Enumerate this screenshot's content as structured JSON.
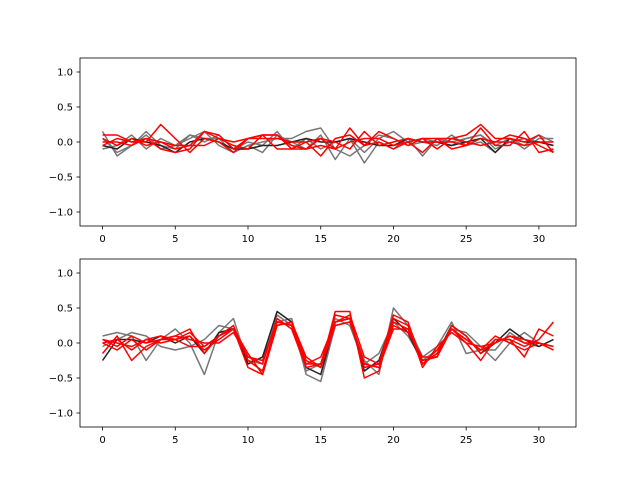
{
  "chart_data": [
    {
      "type": "line",
      "title": "",
      "xlabel": "",
      "ylabel": "",
      "xlim": [
        -1.55,
        32.55
      ],
      "ylim": [
        -1.2,
        1.2
      ],
      "xticks": [
        0,
        5,
        10,
        15,
        20,
        25,
        30
      ],
      "yticks": [
        -1.0,
        -0.5,
        0.0,
        0.5,
        1.0
      ],
      "xtick_labels": [
        "0",
        "5",
        "10",
        "15",
        "20",
        "25",
        "30"
      ],
      "ytick_labels": [
        "−1.0",
        "−0.5",
        "0.0",
        "0.5",
        "1.0"
      ],
      "grid": false,
      "legend": "none",
      "x": [
        0,
        1,
        2,
        3,
        4,
        5,
        6,
        7,
        8,
        9,
        10,
        11,
        12,
        13,
        14,
        15,
        16,
        17,
        18,
        19,
        20,
        21,
        22,
        23,
        24,
        25,
        26,
        27,
        28,
        29,
        30,
        31
      ],
      "series": [
        {
          "color": "#777777",
          "values": [
            0.15,
            -0.2,
            -0.05,
            0.15,
            -0.05,
            -0.1,
            0.1,
            0.05,
            0.05,
            -0.15,
            -0.05,
            0.0,
            0.05,
            0.05,
            0.15,
            0.2,
            -0.1,
            -0.2,
            -0.05,
            0.1,
            0.05,
            -0.05,
            0.0,
            -0.05,
            0.1,
            -0.05,
            0.0,
            -0.15,
            0.05,
            -0.05,
            0.1,
            0.0
          ]
        },
        {
          "color": "#777777",
          "values": [
            -0.1,
            -0.05,
            0.1,
            -0.1,
            0.05,
            -0.05,
            0.05,
            0.15,
            -0.05,
            -0.15,
            -0.05,
            -0.15,
            0.1,
            0.0,
            -0.1,
            0.1,
            -0.25,
            0.05,
            -0.3,
            0.0,
            -0.1,
            0.05,
            -0.2,
            0.05,
            0.0,
            0.05,
            0.1,
            -0.05,
            0.05,
            -0.1,
            0.05,
            0.05
          ]
        },
        {
          "color": "#777777",
          "values": [
            0.05,
            -0.15,
            -0.05,
            0.1,
            -0.1,
            -0.05,
            0.1,
            0.0,
            0.1,
            -0.1,
            0.0,
            -0.05,
            0.15,
            -0.1,
            0.05,
            -0.1,
            0.0,
            0.05,
            -0.15,
            0.05,
            0.15,
            0.0,
            0.05,
            0.0,
            -0.05,
            0.05,
            0.1,
            -0.1,
            0.0,
            0.05,
            0.0,
            -0.05
          ]
        },
        {
          "color": "#222222",
          "values": [
            -0.05,
            -0.1,
            0.05,
            0.0,
            -0.05,
            -0.15,
            0.0,
            0.05,
            0.0,
            -0.1,
            -0.1,
            -0.05,
            -0.05,
            0.0,
            0.05,
            0.0,
            0.0,
            0.05,
            0.0,
            -0.05,
            -0.05,
            0.05,
            0.0,
            0.0,
            -0.05,
            0.0,
            0.05,
            -0.15,
            0.05,
            0.0,
            0.0,
            -0.05
          ]
        },
        {
          "color": "#ff0000",
          "values": [
            0.1,
            0.1,
            0.0,
            0.0,
            0.25,
            0.05,
            -0.15,
            0.05,
            0.0,
            -0.15,
            0.05,
            0.1,
            -0.1,
            -0.1,
            -0.1,
            -0.05,
            -0.1,
            0.2,
            -0.05,
            0.15,
            0.05,
            -0.05,
            0.05,
            -0.1,
            0.05,
            0.1,
            0.25,
            0.05,
            0.05,
            0.0,
            0.1,
            -0.15
          ]
        },
        {
          "color": "#ff0000",
          "values": [
            0.05,
            -0.05,
            0.05,
            -0.05,
            0.0,
            -0.1,
            -0.05,
            0.15,
            0.05,
            -0.05,
            -0.1,
            0.1,
            0.1,
            -0.05,
            -0.1,
            0.05,
            0.0,
            -0.1,
            0.15,
            -0.05,
            0.0,
            0.05,
            0.0,
            0.0,
            0.0,
            -0.05,
            0.2,
            -0.05,
            -0.05,
            0.15,
            -0.15,
            -0.1
          ]
        },
        {
          "color": "#ff0000",
          "values": [
            -0.05,
            0.05,
            0.0,
            0.05,
            -0.1,
            -0.15,
            -0.1,
            0.15,
            0.1,
            -0.1,
            0.05,
            0.1,
            0.1,
            -0.1,
            0.0,
            -0.2,
            0.05,
            0.1,
            -0.05,
            0.0,
            -0.1,
            0.0,
            -0.15,
            0.05,
            -0.1,
            -0.05,
            0.05,
            0.0,
            0.1,
            0.05,
            -0.05,
            -0.15
          ]
        },
        {
          "color": "#ff0000",
          "values": [
            0.0,
            0.0,
            -0.05,
            0.05,
            0.0,
            -0.05,
            -0.05,
            -0.05,
            0.05,
            0.0,
            0.05,
            0.05,
            0.05,
            0.0,
            0.0,
            0.05,
            -0.1,
            0.0,
            0.05,
            0.05,
            -0.05,
            0.0,
            0.05,
            0.05,
            0.05,
            0.0,
            -0.05,
            0.0,
            0.0,
            -0.05,
            0.0,
            0.0
          ]
        }
      ]
    },
    {
      "type": "line",
      "title": "",
      "xlabel": "",
      "ylabel": "",
      "xlim": [
        -1.55,
        32.55
      ],
      "ylim": [
        -1.2,
        1.2
      ],
      "xticks": [
        0,
        5,
        10,
        15,
        20,
        25,
        30
      ],
      "yticks": [
        -1.0,
        -0.5,
        0.0,
        0.5,
        1.0
      ],
      "xtick_labels": [
        "0",
        "5",
        "10",
        "15",
        "20",
        "25",
        "30"
      ],
      "ytick_labels": [
        "−1.0",
        "−0.5",
        "0.0",
        "0.5",
        "1.0"
      ],
      "grid": false,
      "legend": "none",
      "x": [
        0,
        1,
        2,
        3,
        4,
        5,
        6,
        7,
        8,
        9,
        10,
        11,
        12,
        13,
        14,
        15,
        16,
        17,
        18,
        19,
        20,
        21,
        22,
        23,
        24,
        25,
        26,
        27,
        28,
        29,
        30,
        31
      ],
      "series": [
        {
          "color": "#777777",
          "values": [
            0.1,
            0.15,
            0.1,
            -0.25,
            0.05,
            0.2,
            0.0,
            -0.45,
            0.15,
            0.35,
            -0.3,
            -0.2,
            0.3,
            0.35,
            -0.45,
            -0.55,
            0.25,
            0.3,
            -0.25,
            -0.45,
            0.5,
            0.25,
            -0.2,
            -0.05,
            0.3,
            -0.15,
            -0.1,
            -0.1,
            0.15,
            0.0,
            -0.05,
            0.05
          ]
        },
        {
          "color": "#777777",
          "values": [
            -0.05,
            0.05,
            0.15,
            0.1,
            -0.05,
            -0.1,
            -0.05,
            0.05,
            0.25,
            0.2,
            -0.25,
            -0.3,
            0.4,
            0.25,
            -0.4,
            -0.3,
            0.35,
            0.25,
            -0.3,
            -0.15,
            0.3,
            0.1,
            -0.25,
            -0.1,
            0.2,
            0.15,
            -0.05,
            -0.25,
            0.0,
            0.15,
            0.0,
            -0.05
          ]
        },
        {
          "color": "#222222",
          "values": [
            -0.25,
            0.05,
            0.05,
            0.0,
            0.1,
            0.0,
            0.1,
            -0.15,
            0.15,
            0.2,
            -0.3,
            -0.2,
            0.45,
            0.3,
            -0.35,
            -0.45,
            0.3,
            0.35,
            -0.4,
            -0.25,
            0.35,
            0.15,
            -0.3,
            -0.15,
            0.25,
            0.1,
            -0.15,
            0.0,
            0.2,
            0.05,
            -0.05,
            0.05
          ]
        },
        {
          "color": "#ff0000",
          "values": [
            0.05,
            -0.05,
            0.1,
            0.0,
            0.05,
            0.1,
            0.2,
            -0.15,
            0.1,
            0.2,
            -0.35,
            -0.45,
            0.25,
            0.3,
            -0.2,
            -0.35,
            0.45,
            0.45,
            -0.5,
            -0.4,
            0.35,
            0.25,
            -0.35,
            -0.05,
            0.15,
            0.0,
            -0.25,
            0.05,
            0.05,
            -0.2,
            0.2,
            0.1
          ]
        },
        {
          "color": "#ff0000",
          "values": [
            -0.15,
            0.1,
            -0.25,
            -0.05,
            0.05,
            0.05,
            0.15,
            -0.05,
            0.1,
            0.25,
            -0.25,
            -0.4,
            0.3,
            0.25,
            -0.3,
            -0.2,
            0.3,
            0.4,
            -0.2,
            -0.3,
            0.4,
            0.3,
            -0.3,
            -0.1,
            0.2,
            0.05,
            -0.1,
            0.1,
            0.0,
            -0.1,
            0.0,
            -0.1
          ]
        },
        {
          "color": "#ff0000",
          "values": [
            0.0,
            -0.1,
            0.05,
            -0.1,
            0.05,
            0.1,
            0.05,
            0.0,
            0.0,
            0.15,
            -0.2,
            -0.3,
            0.35,
            0.2,
            -0.35,
            -0.3,
            0.4,
            0.35,
            -0.35,
            -0.3,
            0.25,
            0.15,
            -0.2,
            -0.2,
            0.25,
            0.1,
            -0.15,
            0.05,
            0.05,
            -0.05,
            0.05,
            0.3
          ]
        },
        {
          "color": "#ff0000",
          "values": [
            0.05,
            0.0,
            -0.05,
            0.05,
            0.1,
            0.05,
            0.1,
            -0.1,
            0.05,
            0.2,
            -0.15,
            -0.45,
            0.25,
            0.3,
            -0.25,
            -0.35,
            0.25,
            0.3,
            -0.3,
            -0.35,
            0.2,
            0.2,
            -0.25,
            -0.2,
            0.2,
            0.0,
            -0.05,
            0.0,
            0.1,
            0.05,
            0.0,
            -0.05
          ]
        },
        {
          "color": "#ff0000",
          "values": [
            0.0,
            0.05,
            -0.1,
            0.05,
            0.0,
            0.05,
            -0.05,
            -0.05,
            0.1,
            0.2,
            -0.2,
            -0.25,
            0.3,
            0.25,
            -0.3,
            -0.3,
            0.3,
            0.35,
            -0.3,
            -0.35,
            0.3,
            0.2,
            -0.3,
            -0.15,
            0.2,
            0.05,
            -0.1,
            0.0,
            0.1,
            0.0,
            0.0,
            -0.1
          ]
        }
      ]
    }
  ]
}
